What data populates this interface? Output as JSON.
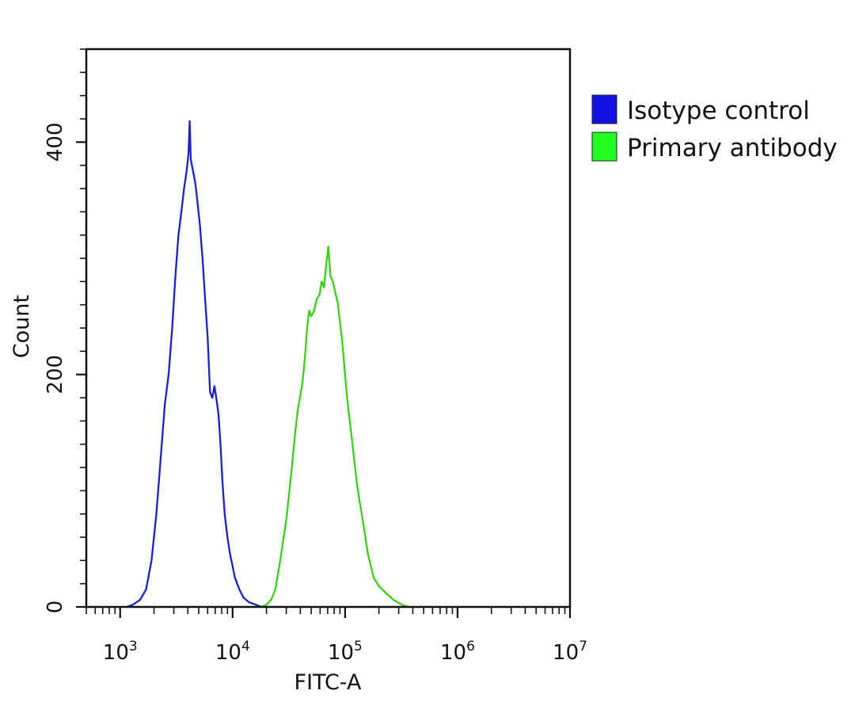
{
  "chart_data": {
    "type": "line",
    "title": "",
    "xlabel": "FITC-A",
    "ylabel": "Count",
    "x_scale": "log",
    "xlim": [
      500,
      10000000
    ],
    "ylim": [
      0,
      480
    ],
    "x_ticks": [
      {
        "value": 1000,
        "base": "10",
        "exp": "3"
      },
      {
        "value": 10000,
        "base": "10",
        "exp": "4"
      },
      {
        "value": 100000,
        "base": "10",
        "exp": "5"
      },
      {
        "value": 1000000,
        "base": "10",
        "exp": "6"
      },
      {
        "value": 10000000,
        "base": "10",
        "exp": "7"
      }
    ],
    "y_ticks": [
      {
        "value": 0,
        "label": "0"
      },
      {
        "value": 200,
        "label": "200"
      },
      {
        "value": 400,
        "label": "400"
      }
    ],
    "grid": false,
    "legend_position": "outside-right-top",
    "series": [
      {
        "name": "Isotype control",
        "color": "#1f1fc8",
        "swatch_color": "#1010e0",
        "points": [
          [
            1150,
            0
          ],
          [
            1300,
            2
          ],
          [
            1500,
            6
          ],
          [
            1700,
            15
          ],
          [
            1900,
            40
          ],
          [
            2100,
            80
          ],
          [
            2300,
            130
          ],
          [
            2500,
            175
          ],
          [
            2700,
            200
          ],
          [
            2900,
            240
          ],
          [
            3100,
            285
          ],
          [
            3300,
            320
          ],
          [
            3500,
            340
          ],
          [
            3700,
            360
          ],
          [
            3900,
            375
          ],
          [
            4050,
            390
          ],
          [
            4150,
            418
          ],
          [
            4250,
            385
          ],
          [
            4450,
            375
          ],
          [
            4650,
            365
          ],
          [
            4850,
            350
          ],
          [
            5100,
            330
          ],
          [
            5400,
            300
          ],
          [
            5700,
            265
          ],
          [
            6000,
            232
          ],
          [
            6300,
            185
          ],
          [
            6600,
            180
          ],
          [
            6900,
            190
          ],
          [
            7200,
            178
          ],
          [
            7500,
            165
          ],
          [
            7800,
            140
          ],
          [
            8100,
            110
          ],
          [
            8500,
            80
          ],
          [
            9000,
            60
          ],
          [
            9500,
            45
          ],
          [
            10000,
            35
          ],
          [
            10500,
            25
          ],
          [
            11500,
            15
          ],
          [
            12500,
            8
          ],
          [
            14000,
            4
          ],
          [
            16000,
            2
          ],
          [
            18000,
            0
          ]
        ]
      },
      {
        "name": "Primary antibody",
        "color": "#3ccf1a",
        "swatch_color": "#22ff22",
        "points": [
          [
            18000,
            0
          ],
          [
            20000,
            2
          ],
          [
            22000,
            6
          ],
          [
            24000,
            15
          ],
          [
            26000,
            35
          ],
          [
            28000,
            55
          ],
          [
            30000,
            75
          ],
          [
            32000,
            100
          ],
          [
            34000,
            125
          ],
          [
            36000,
            150
          ],
          [
            38000,
            170
          ],
          [
            40000,
            182
          ],
          [
            42000,
            195
          ],
          [
            44000,
            215
          ],
          [
            46000,
            240
          ],
          [
            48000,
            255
          ],
          [
            50000,
            250
          ],
          [
            53000,
            255
          ],
          [
            56000,
            265
          ],
          [
            59000,
            268
          ],
          [
            62000,
            280
          ],
          [
            65000,
            275
          ],
          [
            68000,
            295
          ],
          [
            71000,
            310
          ],
          [
            74000,
            285
          ],
          [
            78000,
            280
          ],
          [
            82000,
            270
          ],
          [
            86000,
            262
          ],
          [
            90000,
            245
          ],
          [
            94000,
            230
          ],
          [
            98000,
            210
          ],
          [
            103000,
            185
          ],
          [
            110000,
            160
          ],
          [
            118000,
            135
          ],
          [
            126000,
            110
          ],
          [
            135000,
            90
          ],
          [
            145000,
            72
          ],
          [
            160000,
            45
          ],
          [
            180000,
            25
          ],
          [
            200000,
            18
          ],
          [
            230000,
            12
          ],
          [
            270000,
            6
          ],
          [
            320000,
            2
          ],
          [
            360000,
            0
          ]
        ]
      }
    ]
  }
}
